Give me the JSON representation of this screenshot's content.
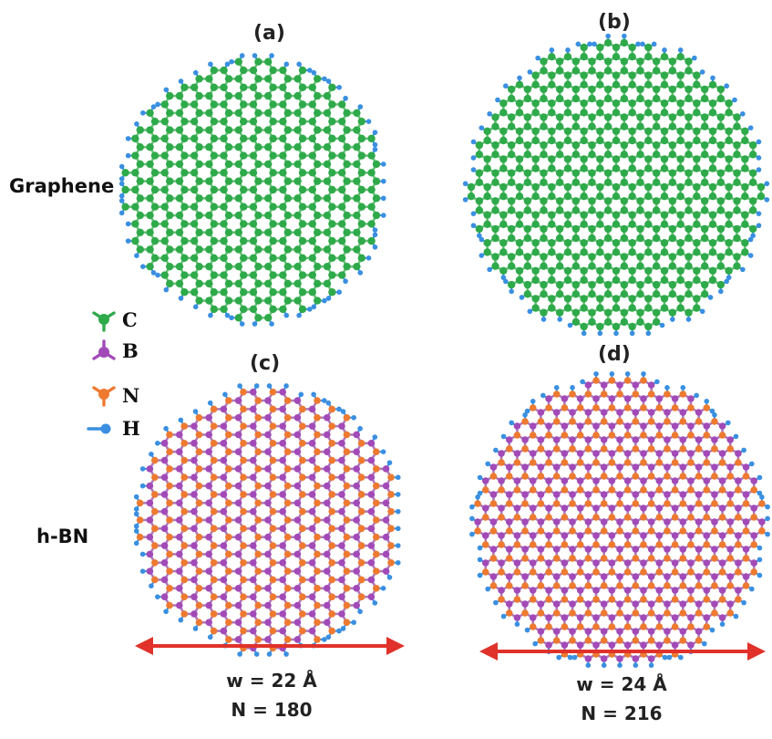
{
  "panels": [
    {
      "id": "a",
      "label": "(a)",
      "material": "graphene",
      "shape": "armchair"
    },
    {
      "id": "b",
      "label": "(b)",
      "material": "graphene",
      "shape": "zigzag"
    },
    {
      "id": "c",
      "label": "(c)",
      "material": "h-BN",
      "shape": "armchair"
    },
    {
      "id": "d",
      "label": "(d)",
      "material": "h-BN",
      "shape": "zigzag"
    }
  ],
  "row_labels": {
    "top": "Graphene",
    "bottom": "h-BN"
  },
  "legend": [
    {
      "symbol": "C",
      "color": "#2eaa4a",
      "icon": "carbon-atom-icon"
    },
    {
      "symbol": "B",
      "color": "#a24ab8",
      "icon": "boron-atom-icon"
    },
    {
      "symbol": "N",
      "color": "#ee7a30",
      "icon": "nitrogen-atom-icon"
    },
    {
      "symbol": "H",
      "color": "#3a8fe0",
      "icon": "hydrogen-atom-icon"
    }
  ],
  "annotations": {
    "left": {
      "width": "w = 22 Å",
      "count": "N = 180"
    },
    "right": {
      "width": "w = 24 Å",
      "count": "N = 216"
    }
  },
  "colors": {
    "carbon": "#2eaa4a",
    "carbon_bond": "#6bc07a",
    "boron": "#a24ab8",
    "nitrogen": "#ee7a30",
    "hydrogen": "#3a8fe0",
    "bn_bond": "#b07ab8",
    "arrow": "#e0322a"
  }
}
